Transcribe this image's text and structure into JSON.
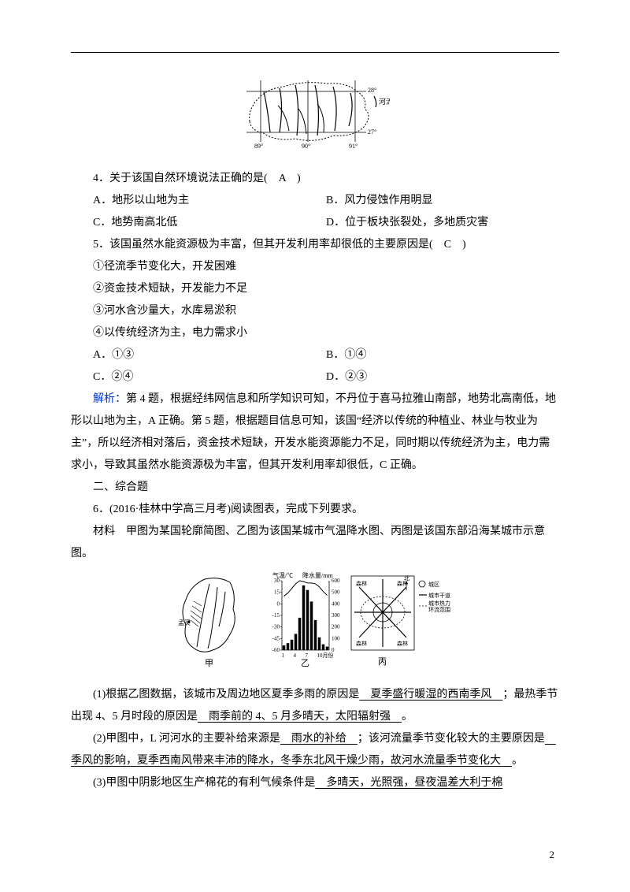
{
  "q4": {
    "stem": "4．关于该国自然环境说法正确的是(　A　)",
    "opts": {
      "a": "A．地形以山地为主",
      "b": "B．风力侵蚀作用明显",
      "c": "C．地势南高北低",
      "d": "D．位于板块张裂处，多地质灾害"
    }
  },
  "q5": {
    "stem": "5．该国虽然水能资源极为丰富，但其开发利用率却很低的主要原因是(　C　)",
    "s1": "①径流季节变化大，开发困难",
    "s2": "②资金技术短缺，开发能力不足",
    "s3": "③河水含沙量大，水库易淤积",
    "s4": "④以传统经济为主，电力需求小",
    "opts": {
      "a": "A．①③",
      "b": "B．①④",
      "c": "C．②④",
      "d": "D．②③"
    }
  },
  "analysis": {
    "label": "解析：",
    "text": "第 4 题，根据经纬网信息和所学知识可知，不丹位于喜马拉雅山南部，地势北高南低，地形以山地为主，A 正确。第 5 题，根据题目信息可知，该国“经济以传统的种植业、林业与牧业为主”，所以经济相对落后，资金技术短缺，开发水能资源能力不足，同时期以传统经济为主，电力需求小，导致其虽然水能资源极为丰富，但其开发利用率却很低，C 正确。"
  },
  "section2": "二、综合题",
  "q6": {
    "stem": "6．(2016·桂林中学高三月考)阅读图表，完成下列要求。",
    "material": "材料　甲图为某国轮廓简图、乙图为该国某城市气温降水图、丙图是该国东部沿海某城市示意图。",
    "figLabels": {
      "jia": "甲",
      "yi": "乙",
      "bing": "丙"
    },
    "chart": {
      "tempLabel": "气温/℃",
      "precipLabel": "降水量/mm",
      "tempTicks": [
        "30",
        "15",
        "0",
        "-15",
        "-30",
        "-45",
        "-60"
      ],
      "precipTicks": [
        "600",
        "500",
        "400",
        "300",
        "200",
        "100",
        "0"
      ],
      "xTicks": [
        "1",
        "4",
        "7",
        "10月份"
      ],
      "bars": [
        40,
        60,
        90,
        140,
        280,
        560,
        520,
        420,
        260,
        110,
        50,
        30
      ],
      "temps": [
        10,
        14,
        20,
        26,
        30,
        29,
        27,
        27,
        26,
        22,
        16,
        11
      ]
    },
    "cityMap": {
      "legend": {
        "district": "城区",
        "mainRoad": "城市干道",
        "greenRing": "城市热力环流范围",
        "forest": "森林"
      }
    },
    "p1a": "(1)根据乙图数据，该城市及周边地区夏季多雨的原因是",
    "p1blank1": "　夏季盛行暖湿的西南季风　",
    "p1b": "；最热季节出现 4、5 月时段的原因是",
    "p1blank2": "　雨季前的 4、5 月多晴天，太阳辐射强　",
    "p1c": "。",
    "p2a": "(2)甲图中，L 河河水的主要补给来源是",
    "p2blank1": "　雨水的补给　",
    "p2b": "；该河流量季节变化较大的主要原因是",
    "p2blank2": "　季风的影响，夏季西南风带来丰沛的降水，冬季东北风干燥少雨，故河水流量季节变化大　",
    "p2c": "。",
    "p3a": "(3)甲图中阴影地区生产棉花的有利气候条件是",
    "p3blank1": "　多晴天，光照强，昼夜温差大利于棉"
  },
  "mapLabels": {
    "lat28": "28°",
    "lat27": "27°",
    "lon89": "89°",
    "lon90": "90°",
    "lon91": "91°",
    "river": "河流"
  },
  "pageNumber": "2",
  "colors": {
    "text": "#000000",
    "link": "#0033cc",
    "bg": "#ffffff"
  }
}
